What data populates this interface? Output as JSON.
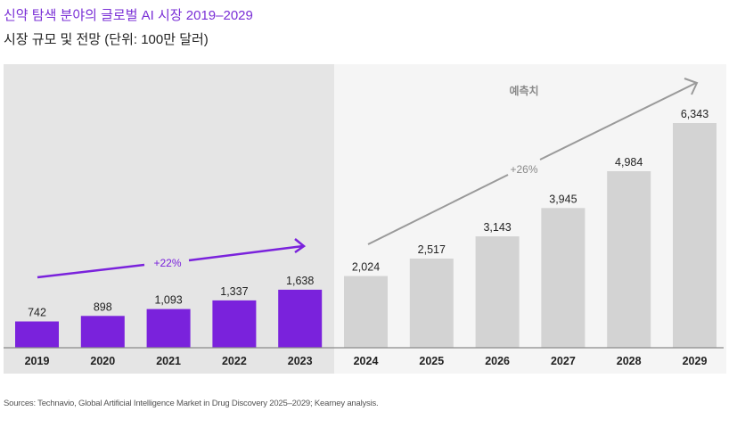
{
  "header": {
    "title": "신약 탐색 분야의 글로벌 AI 시장 2019–2029",
    "subtitle": "시장 규모 및 전망 (단위: 100만 달러)"
  },
  "footer": {
    "source": "Sources: Technavio, Global Artificial Intelligence Market in Drug Discovery 2025–2029; Kearney analysis."
  },
  "colors": {
    "actual": "#7a22dc",
    "forecast": "#d3d3d3",
    "actual_bg": "#e5e5e5",
    "forecast_bg": "#f5f5f5",
    "actual_arrow": "#7a22dc",
    "forecast_arrow": "#9a9a9a"
  },
  "chart_data": {
    "type": "bar",
    "title": "신약 탐색 분야의 글로벌 AI 시장 2019–2029",
    "subtitle": "시장 규모 및 전망 (단위: 100만 달러)",
    "xlabel": "",
    "ylabel": "",
    "ylim": [
      0,
      6343
    ],
    "grid": false,
    "categories": [
      "2019",
      "2020",
      "2021",
      "2022",
      "2023",
      "2024",
      "2025",
      "2026",
      "2027",
      "2028",
      "2029"
    ],
    "values": [
      742,
      898,
      1093,
      1337,
      1638,
      2024,
      2517,
      3143,
      3945,
      4984,
      6343
    ],
    "value_labels": [
      "742",
      "898",
      "1,093",
      "1,337",
      "1,638",
      "2,024",
      "2,517",
      "3,143",
      "3,945",
      "4,984",
      "6,343"
    ],
    "forecast_start_index": 5,
    "annotations": {
      "forecast_label": "예측치",
      "actual_cagr": "+22%",
      "forecast_cagr": "+26%"
    }
  }
}
